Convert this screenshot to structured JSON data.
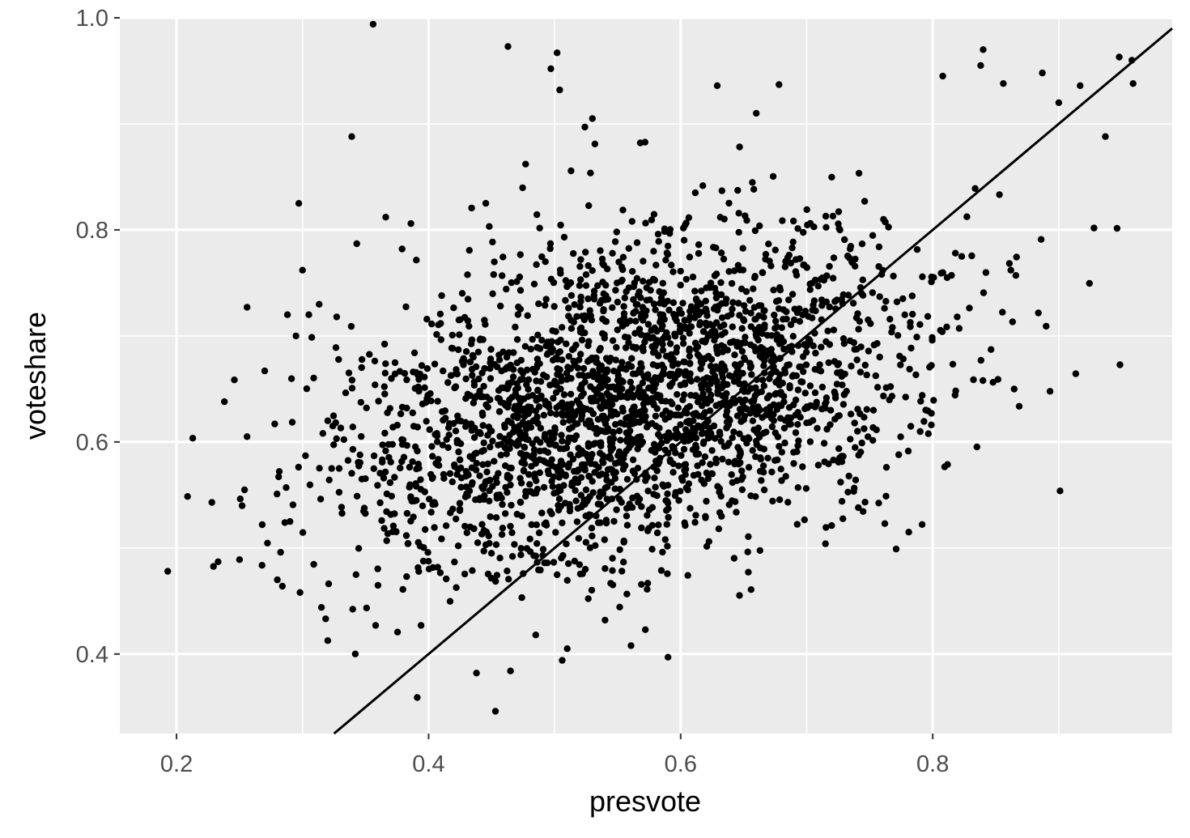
{
  "chart_data": {
    "type": "scatter",
    "xlabel": "presvote",
    "ylabel": "voteshare",
    "xlim": [
      0.155,
      0.99
    ],
    "ylim": [
      0.325,
      1.0
    ],
    "x_major_ticks": [
      0.2,
      0.4,
      0.6,
      0.8
    ],
    "x_tick_labels": [
      "0.2",
      "0.4",
      "0.6",
      "0.8"
    ],
    "x_minor_ticks": [
      0.3,
      0.5,
      0.7,
      0.9
    ],
    "y_major_ticks": [
      0.4,
      0.6,
      0.8,
      1.0
    ],
    "y_tick_labels": [
      "0.4",
      "0.6",
      "0.8",
      "1.0"
    ],
    "y_minor_ticks": [
      0.5,
      0.7,
      0.9
    ],
    "grid": true,
    "reference_line": {
      "intercept": 0,
      "slope": 1
    },
    "colors": {
      "panel_background": "#ebebeb",
      "grid": "#ffffff",
      "points": "#000000",
      "line": "#000000",
      "tick_text": "#4d4d4d"
    },
    "points": [
      [
        0.193,
        0.478
      ],
      [
        0.228,
        0.543
      ],
      [
        0.233,
        0.487
      ],
      [
        0.238,
        0.638
      ],
      [
        0.25,
        0.489
      ],
      [
        0.256,
        0.727
      ],
      [
        0.256,
        0.605
      ],
      [
        0.268,
        0.522
      ],
      [
        0.27,
        0.667
      ],
      [
        0.28,
        0.47
      ],
      [
        0.284,
        0.464
      ],
      [
        0.287,
        0.557
      ],
      [
        0.288,
        0.72
      ],
      [
        0.29,
        0.525
      ],
      [
        0.297,
        0.825
      ],
      [
        0.298,
        0.458
      ],
      [
        0.3,
        0.762
      ],
      [
        0.305,
        0.72
      ],
      [
        0.315,
        0.444
      ],
      [
        0.32,
        0.62
      ],
      [
        0.339,
        0.888
      ],
      [
        0.343,
        0.787
      ],
      [
        0.356,
        0.994
      ],
      [
        0.358,
        0.427
      ],
      [
        0.366,
        0.812
      ],
      [
        0.379,
        0.782
      ],
      [
        0.386,
        0.806
      ],
      [
        0.391,
        0.359
      ],
      [
        0.394,
        0.427
      ],
      [
        0.453,
        0.346
      ],
      [
        0.463,
        0.973
      ],
      [
        0.465,
        0.384
      ],
      [
        0.477,
        0.862
      ],
      [
        0.485,
        0.418
      ],
      [
        0.497,
        0.952
      ],
      [
        0.502,
        0.967
      ],
      [
        0.504,
        0.932
      ],
      [
        0.506,
        0.394
      ],
      [
        0.51,
        0.405
      ],
      [
        0.524,
        0.897
      ],
      [
        0.53,
        0.905
      ],
      [
        0.532,
        0.881
      ],
      [
        0.54,
        0.432
      ],
      [
        0.568,
        0.882
      ],
      [
        0.572,
        0.423
      ],
      [
        0.59,
        0.397
      ],
      [
        0.629,
        0.936
      ],
      [
        0.66,
        0.91
      ],
      [
        0.678,
        0.937
      ],
      [
        0.728,
        0.544
      ],
      [
        0.741,
        0.538
      ],
      [
        0.762,
        0.523
      ],
      [
        0.771,
        0.499
      ],
      [
        0.773,
        0.588
      ],
      [
        0.781,
        0.515
      ],
      [
        0.799,
        0.627
      ],
      [
        0.799,
        0.751
      ],
      [
        0.808,
        0.945
      ],
      [
        0.818,
        0.778
      ],
      [
        0.823,
        0.775
      ],
      [
        0.84,
        0.97
      ],
      [
        0.838,
        0.955
      ],
      [
        0.856,
        0.938
      ],
      [
        0.862,
        0.762
      ],
      [
        0.866,
        0.757
      ],
      [
        0.886,
        0.791
      ],
      [
        0.887,
        0.948
      ],
      [
        0.9,
        0.92
      ],
      [
        0.917,
        0.936
      ],
      [
        0.937,
        0.888
      ],
      [
        0.948,
        0.963
      ],
      [
        0.958,
        0.96
      ],
      [
        0.959,
        0.938
      ]
    ],
    "cloud": {
      "n": 2600,
      "seed": 9173,
      "mean": [
        0.56,
        0.64
      ],
      "sd": [
        0.115,
        0.078
      ],
      "corr": 0.38
    }
  }
}
